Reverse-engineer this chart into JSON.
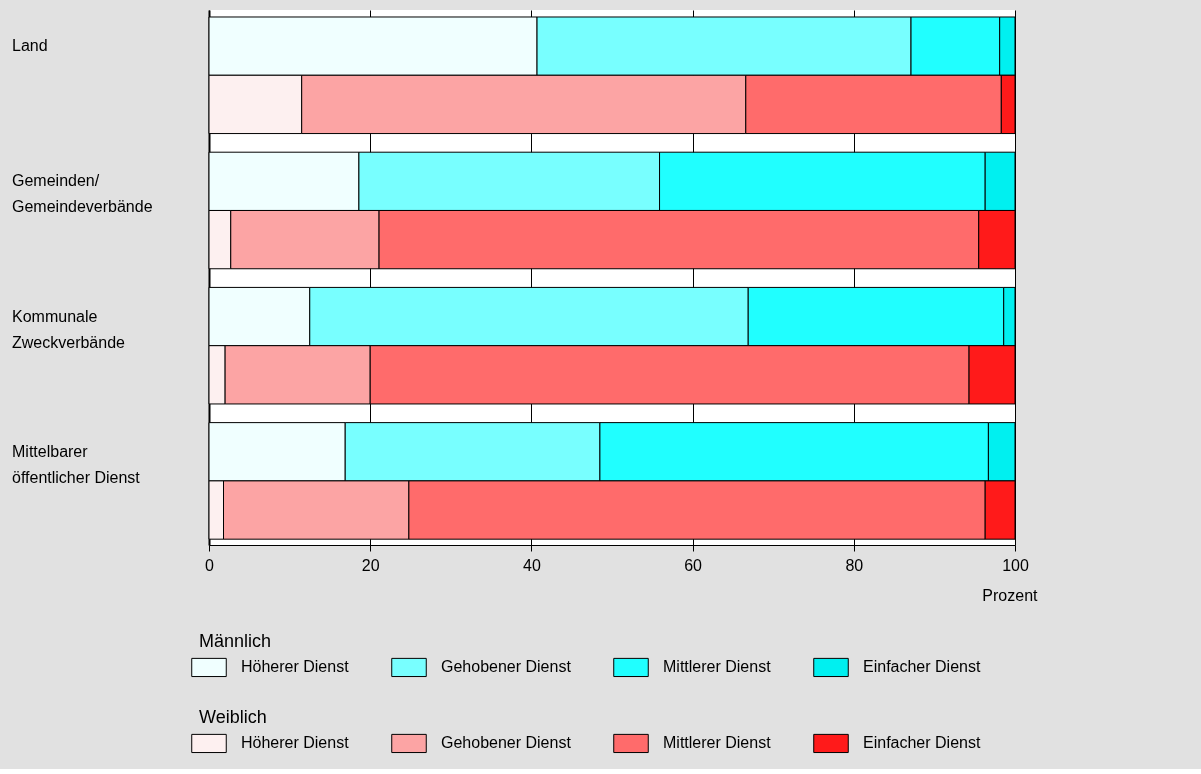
{
  "chart_data": {
    "type": "bar",
    "orientation": "horizontal",
    "stacked": true,
    "categories": [
      "Land",
      null,
      "Gemeinden/\nGemeindeverbände",
      null,
      "Kommunale\nZweckverbände",
      null,
      "Mittelbarer\nöffentlicher Dienst",
      null
    ],
    "legend_title": [
      "Männlich",
      "Weiblich"
    ],
    "series": [
      {
        "name": "Höherer Dienst",
        "color": "#f0ffff",
        "values": [
          40.7,
          null,
          18.6,
          null,
          12.5,
          null,
          16.9,
          null
        ]
      },
      {
        "name": "Gehobener Dienst",
        "color": "#78ffff",
        "values": [
          46.4,
          null,
          37.3,
          null,
          54.4,
          null,
          31.6,
          null
        ]
      },
      {
        "name": "Mittlerer Dienst",
        "color": "#20ffff",
        "values": [
          11.0,
          null,
          40.4,
          null,
          31.7,
          null,
          48.2,
          null
        ]
      },
      {
        "name": "Einfacher Dienst",
        "color": "#00f0f0",
        "values": [
          1.9,
          null,
          3.7,
          null,
          1.4,
          null,
          3.3,
          null
        ]
      },
      {
        "name": "Höherer Dienst",
        "color": "#fdf0f0",
        "values": [
          null,
          11.5,
          null,
          2.7,
          null,
          2.0,
          null,
          1.8
        ]
      },
      {
        "name": "Gehobener Dienst",
        "color": "#fca4a4",
        "values": [
          null,
          55.1,
          null,
          18.4,
          null,
          18.0,
          null,
          23.0
        ]
      },
      {
        "name": "Mittlerer Dienst",
        "color": "#ff6b6b",
        "values": [
          null,
          31.7,
          null,
          74.4,
          null,
          74.3,
          null,
          71.5
        ]
      },
      {
        "name": "Einfacher Dienst",
        "color": "#ff1a1a",
        "values": [
          null,
          1.7,
          null,
          4.5,
          null,
          5.7,
          null,
          3.7
        ]
      }
    ],
    "xlim": [
      0,
      100
    ],
    "xticks": [
      0,
      20,
      40,
      60,
      80,
      100
    ],
    "xlabel": "Prozent",
    "grid": "x",
    "legend": "bottom"
  }
}
